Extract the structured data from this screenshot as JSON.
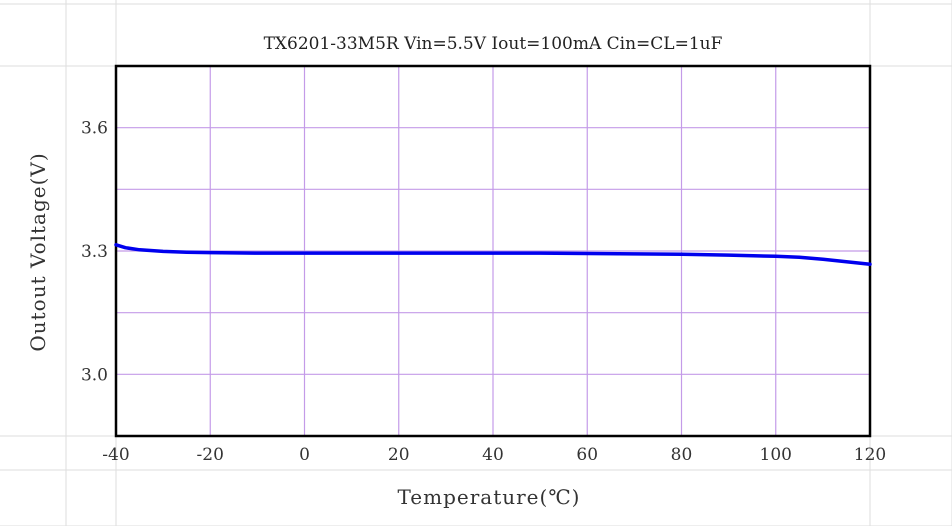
{
  "chart_data": {
    "type": "line",
    "title": "TX6201-33M5R Vin=5.5V Iout=100mA Cin=CL=1uF",
    "xlabel": "Temperature(℃)",
    "ylabel": "Outout Voltage(V)",
    "xlim": [
      -40,
      120
    ],
    "ylim": [
      2.85,
      3.75
    ],
    "x_ticks": [
      -40,
      -20,
      0,
      20,
      40,
      60,
      80,
      100,
      120
    ],
    "x_tick_labels": [
      "-40",
      "-20",
      "0",
      "20",
      "40",
      "60",
      "80",
      "100",
      "120"
    ],
    "y_ticks": [
      3.0,
      3.3,
      3.6
    ],
    "y_tick_labels": [
      "3.0",
      "3.3",
      "3.6"
    ],
    "y_minor_gridlines": [
      3.15,
      3.45
    ],
    "grid": true,
    "colors": {
      "series": "#0000ee",
      "grid": "#c49be8",
      "outer_grid": "#dddddd",
      "frame": "#000000"
    },
    "series": [
      {
        "x": [
          -40,
          -38,
          -35,
          -30,
          -25,
          -20,
          -10,
          0,
          10,
          20,
          30,
          40,
          50,
          60,
          70,
          80,
          90,
          100,
          105,
          110,
          115,
          120
        ],
        "y": [
          3.315,
          3.308,
          3.303,
          3.299,
          3.297,
          3.296,
          3.295,
          3.295,
          3.295,
          3.295,
          3.295,
          3.295,
          3.295,
          3.294,
          3.293,
          3.292,
          3.29,
          3.287,
          3.285,
          3.28,
          3.274,
          3.268
        ]
      }
    ]
  }
}
